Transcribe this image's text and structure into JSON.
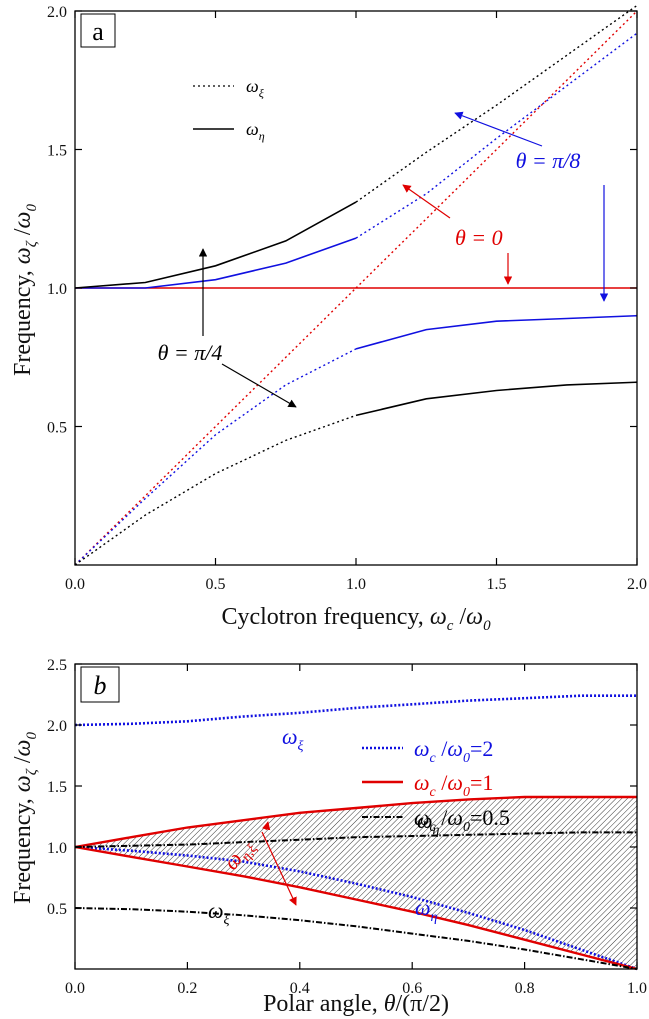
{
  "chart_data": [
    {
      "panel_label": "a",
      "type": "line",
      "xlabel_text": "Cyclotron frequency,",
      "xlabel_math": "ω_c /ω_0",
      "ylabel_text": "Frequency,",
      "ylabel_math": "ω_ζ /ω_0",
      "xlim": [
        0,
        2.0
      ],
      "ylim": [
        0,
        2.0
      ],
      "xticks": [
        "0.0",
        "0.5",
        "1.0",
        "1.5",
        "2.0"
      ],
      "yticks": [
        "0.5",
        "1.0",
        "1.5",
        "2.0"
      ],
      "legend": [
        {
          "label": "ω_ξ",
          "style": "dotted",
          "color": "#000000"
        },
        {
          "label": "ω_η",
          "style": "solid",
          "color": "#000000"
        }
      ],
      "legend_position": "top-left",
      "annotations": [
        {
          "text": "θ = 0",
          "color": "#e00000"
        },
        {
          "text": "θ = π/8",
          "color": "#1010e0"
        },
        {
          "text": "θ = π/4",
          "color": "#000000"
        }
      ],
      "series": [
        {
          "theta": "0",
          "color": "#e00000",
          "x": [
            0,
            0.25,
            0.5,
            0.75,
            1.0,
            1.25,
            1.5,
            1.75,
            2.0
          ],
          "upper": [
            1.0,
            1.0,
            1.0,
            1.0,
            1.0,
            1.25,
            1.5,
            1.75,
            2.0
          ],
          "lower": [
            0.0,
            0.25,
            0.5,
            0.75,
            1.0,
            1.0,
            1.0,
            1.0,
            1.0
          ]
        },
        {
          "theta": "π/8",
          "color": "#1010e0",
          "x": [
            0,
            0.25,
            0.5,
            0.75,
            1.0,
            1.25,
            1.5,
            1.75,
            2.0
          ],
          "upper": [
            1.0,
            1.0,
            1.03,
            1.09,
            1.18,
            1.34,
            1.54,
            1.73,
            1.92
          ],
          "lower": [
            0.0,
            0.24,
            0.47,
            0.65,
            0.78,
            0.85,
            0.88,
            0.89,
            0.9
          ]
        },
        {
          "theta": "π/4",
          "color": "#000000",
          "x": [
            0,
            0.25,
            0.5,
            0.75,
            1.0,
            1.25,
            1.5,
            1.75,
            2.0
          ],
          "upper": [
            1.0,
            1.02,
            1.08,
            1.17,
            1.31,
            1.49,
            1.66,
            1.84,
            2.02
          ],
          "lower": [
            0.0,
            0.18,
            0.33,
            0.45,
            0.54,
            0.6,
            0.63,
            0.65,
            0.66
          ]
        }
      ]
    },
    {
      "panel_label": "b",
      "type": "line",
      "xlabel_text": "Polar angle,",
      "xlabel_math": "θ/(π/2)",
      "ylabel_text": "Frequency,",
      "ylabel_math": "ω_ζ /ω_0",
      "xlim": [
        0,
        1.0
      ],
      "ylim": [
        0,
        2.5
      ],
      "xticks": [
        "0.0",
        "0.2",
        "0.4",
        "0.6",
        "0.8",
        "1.0"
      ],
      "yticks": [
        "0.5",
        "1.0",
        "1.5",
        "2.0",
        "2.5"
      ],
      "legend": [
        {
          "label": "ω_c /ω_0=2",
          "style": "dotted",
          "color": "#1010e0"
        },
        {
          "label": "ω_c /ω_0=1",
          "style": "solid",
          "color": "#e00000"
        },
        {
          "label": "ω_c /ω_0=0.5",
          "style": "dashdot",
          "color": "#000000"
        }
      ],
      "legend_position": "top-right",
      "annotations": [
        {
          "text": "ω_ξ",
          "color": "#1010e0"
        },
        {
          "text": "ω_η,ξ",
          "color": "#e00000"
        },
        {
          "text": "ω_η",
          "color": "#000000"
        },
        {
          "text": "ω_η",
          "color": "#1010e0"
        },
        {
          "text": "ω_ξ",
          "color": "#000000"
        }
      ],
      "series": [
        {
          "name": "ω_c /ω_0=2",
          "color": "#1010e0",
          "x": [
            0,
            0.1,
            0.2,
            0.3,
            0.4,
            0.5,
            0.6,
            0.7,
            0.8,
            0.9,
            1.0
          ],
          "upper": [
            2.0,
            2.01,
            2.03,
            2.07,
            2.1,
            2.14,
            2.17,
            2.2,
            2.22,
            2.24,
            2.24
          ],
          "lower": [
            1.0,
            0.97,
            0.93,
            0.88,
            0.8,
            0.7,
            0.59,
            0.46,
            0.32,
            0.16,
            0.0
          ]
        },
        {
          "name": "ω_c /ω_0=1",
          "color": "#e00000",
          "x": [
            0,
            0.1,
            0.2,
            0.3,
            0.4,
            0.5,
            0.6,
            0.7,
            0.8,
            0.9,
            1.0
          ],
          "upper": [
            1.0,
            1.08,
            1.16,
            1.22,
            1.28,
            1.32,
            1.36,
            1.39,
            1.41,
            1.41,
            1.41
          ],
          "lower": [
            1.0,
            0.92,
            0.84,
            0.76,
            0.67,
            0.57,
            0.47,
            0.36,
            0.24,
            0.12,
            0.0
          ]
        },
        {
          "name": "ω_c /ω_0=0.5",
          "color": "#000000",
          "x": [
            0,
            0.1,
            0.2,
            0.3,
            0.4,
            0.5,
            0.6,
            0.7,
            0.8,
            0.9,
            1.0
          ],
          "upper": [
            1.0,
            1.01,
            1.02,
            1.04,
            1.06,
            1.08,
            1.09,
            1.1,
            1.11,
            1.12,
            1.12
          ],
          "lower": [
            0.5,
            0.49,
            0.47,
            0.44,
            0.4,
            0.35,
            0.29,
            0.23,
            0.16,
            0.08,
            0.0
          ]
        }
      ]
    }
  ]
}
